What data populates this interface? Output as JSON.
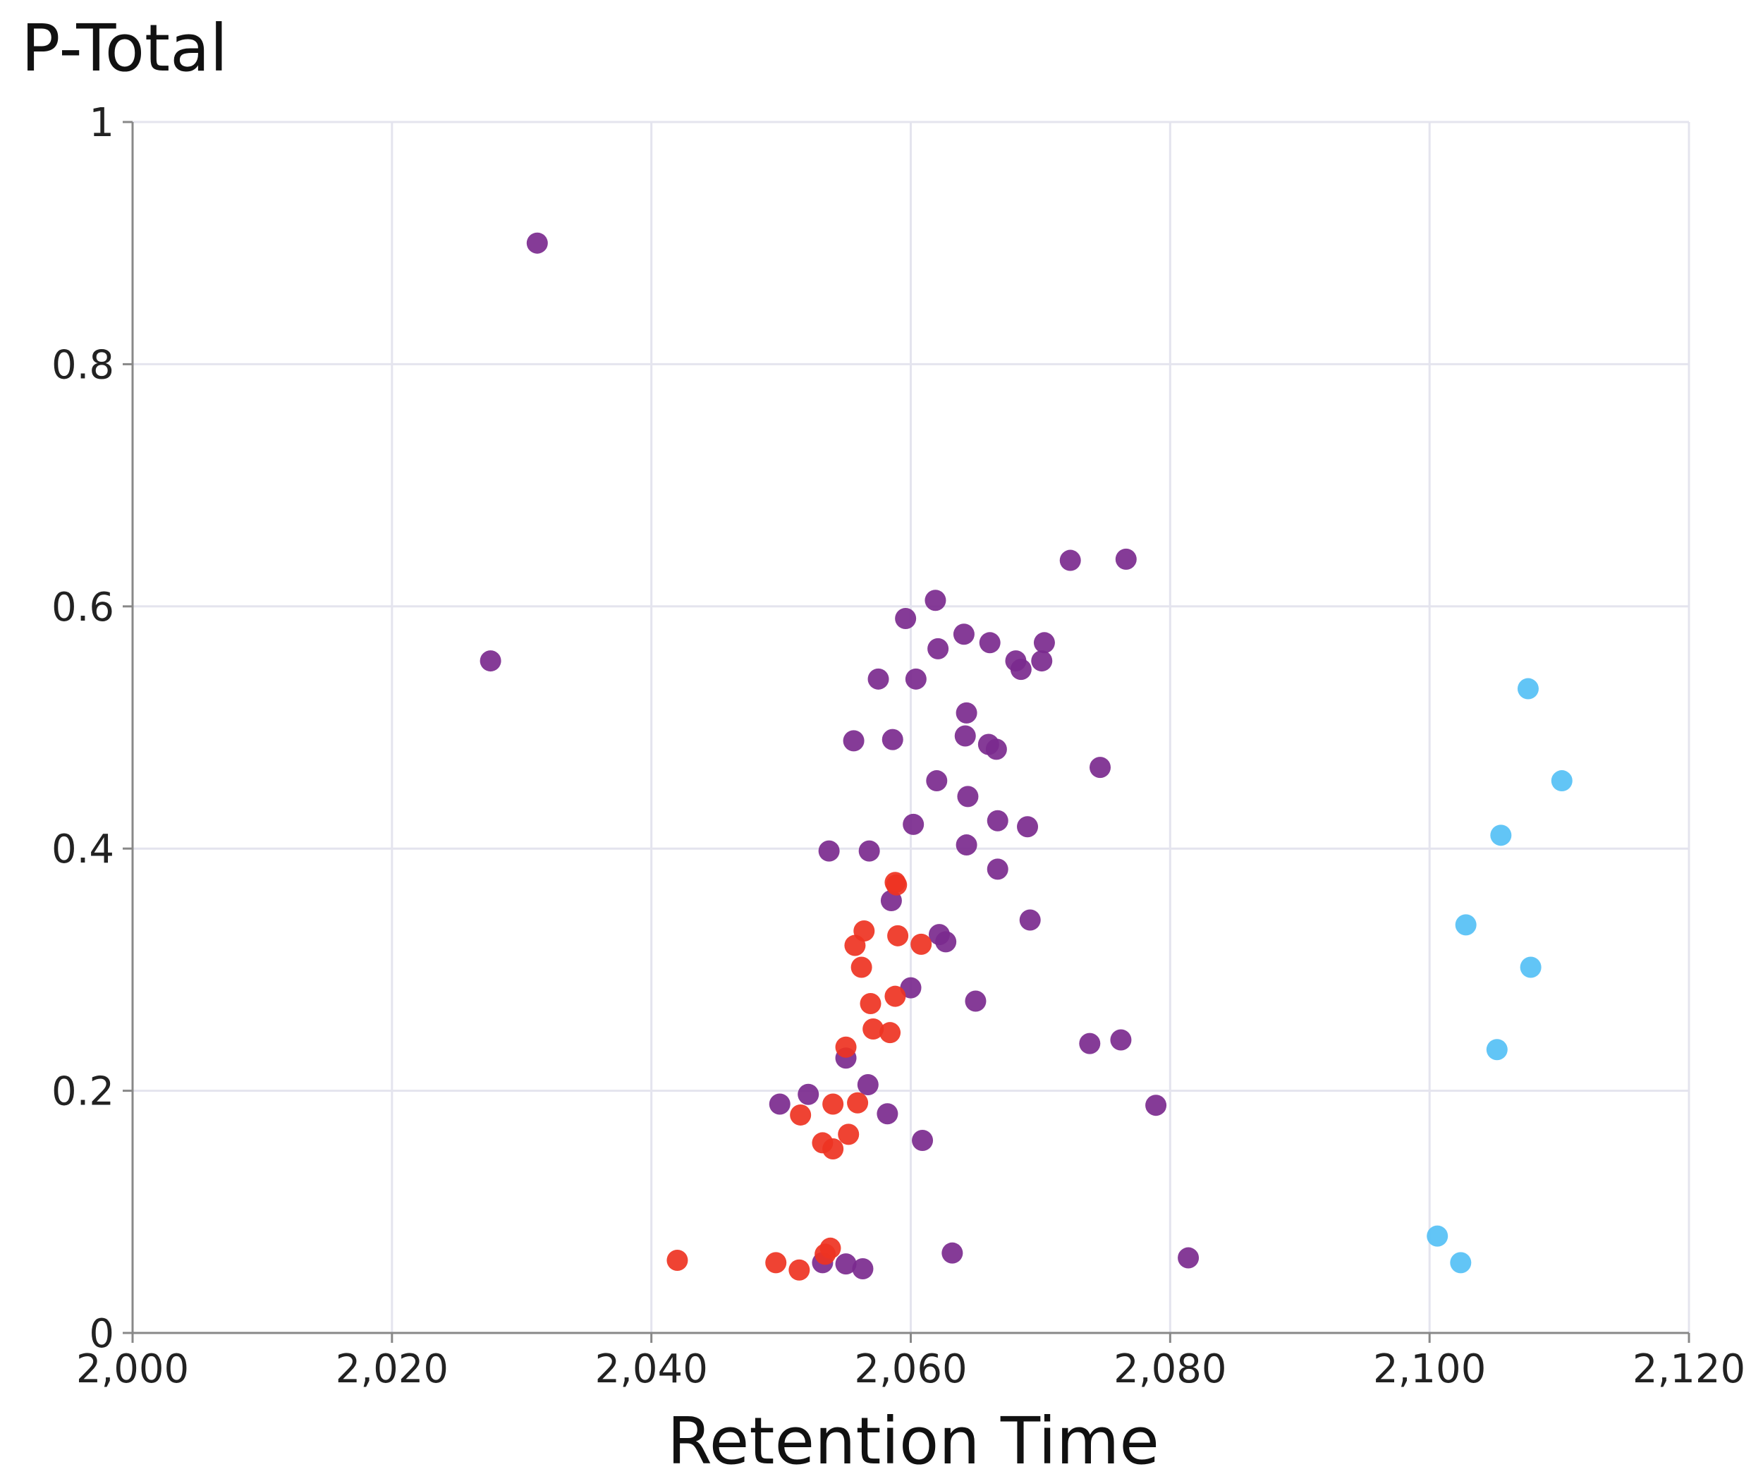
{
  "chart_data": {
    "type": "scatter",
    "title": "",
    "ylabel": "P-Total",
    "xlabel": "Retention Time",
    "xlim": [
      2000,
      2120
    ],
    "ylim": [
      0,
      1
    ],
    "x_ticks": [
      2000,
      2020,
      2040,
      2060,
      2080,
      2100,
      2120
    ],
    "x_tick_labels": [
      "2,000",
      "2,020",
      "2,040",
      "2,060",
      "2,080",
      "2,100",
      "2,120"
    ],
    "y_ticks": [
      0,
      0.2,
      0.4,
      0.6,
      0.8,
      1
    ],
    "y_tick_labels": [
      "0",
      "0.2",
      "0.4",
      "0.6",
      "0.8",
      "1"
    ],
    "grid": true,
    "legend": "none",
    "series": [
      {
        "color": "#7b2a8e",
        "points": [
          [
            2031.2,
            0.9
          ],
          [
            2027.6,
            0.555
          ],
          [
            2072.3,
            0.638
          ],
          [
            2076.6,
            0.639
          ],
          [
            2061.9,
            0.605
          ],
          [
            2059.6,
            0.59
          ],
          [
            2064.1,
            0.577
          ],
          [
            2066.1,
            0.57
          ],
          [
            2070.3,
            0.57
          ],
          [
            2062.1,
            0.565
          ],
          [
            2068.1,
            0.555
          ],
          [
            2070.1,
            0.555
          ],
          [
            2068.5,
            0.548
          ],
          [
            2057.5,
            0.54
          ],
          [
            2060.4,
            0.54
          ],
          [
            2064.3,
            0.512
          ],
          [
            2055.6,
            0.489
          ],
          [
            2058.6,
            0.49
          ],
          [
            2064.2,
            0.493
          ],
          [
            2066.0,
            0.486
          ],
          [
            2066.6,
            0.482
          ],
          [
            2074.6,
            0.467
          ],
          [
            2062.0,
            0.456
          ],
          [
            2064.4,
            0.443
          ],
          [
            2060.2,
            0.42
          ],
          [
            2066.7,
            0.423
          ],
          [
            2069.0,
            0.418
          ],
          [
            2053.7,
            0.398
          ],
          [
            2056.8,
            0.398
          ],
          [
            2064.3,
            0.403
          ],
          [
            2066.7,
            0.383
          ],
          [
            2058.5,
            0.357
          ],
          [
            2069.2,
            0.341
          ],
          [
            2062.2,
            0.329
          ],
          [
            2062.7,
            0.323
          ],
          [
            2060.0,
            0.285
          ],
          [
            2065.0,
            0.274
          ],
          [
            2073.8,
            0.239
          ],
          [
            2076.2,
            0.242
          ],
          [
            2055.0,
            0.227
          ],
          [
            2056.7,
            0.205
          ],
          [
            2052.1,
            0.197
          ],
          [
            2049.9,
            0.189
          ],
          [
            2078.9,
            0.188
          ],
          [
            2058.2,
            0.181
          ],
          [
            2060.9,
            0.159
          ],
          [
            2063.2,
            0.066
          ],
          [
            2081.4,
            0.062
          ],
          [
            2053.2,
            0.058
          ],
          [
            2055.0,
            0.057
          ],
          [
            2056.3,
            0.053
          ]
        ]
      },
      {
        "color": "#ee3322",
        "points": [
          [
            2058.8,
            0.372
          ],
          [
            2058.9,
            0.37
          ],
          [
            2056.4,
            0.332
          ],
          [
            2059.0,
            0.328
          ],
          [
            2055.7,
            0.32
          ],
          [
            2060.8,
            0.321
          ],
          [
            2056.2,
            0.302
          ],
          [
            2058.8,
            0.278
          ],
          [
            2056.9,
            0.272
          ],
          [
            2057.1,
            0.251
          ],
          [
            2058.4,
            0.248
          ],
          [
            2055.0,
            0.236
          ],
          [
            2054.0,
            0.189
          ],
          [
            2055.9,
            0.19
          ],
          [
            2051.5,
            0.18
          ],
          [
            2055.2,
            0.164
          ],
          [
            2053.2,
            0.157
          ],
          [
            2054.0,
            0.152
          ],
          [
            2053.8,
            0.07
          ],
          [
            2053.4,
            0.065
          ],
          [
            2042.0,
            0.06
          ],
          [
            2049.6,
            0.058
          ],
          [
            2051.4,
            0.052
          ]
        ]
      },
      {
        "color": "#55c0f5",
        "points": [
          [
            2107.6,
            0.532
          ],
          [
            2110.2,
            0.456
          ],
          [
            2105.5,
            0.411
          ],
          [
            2102.8,
            0.337
          ],
          [
            2107.8,
            0.302
          ],
          [
            2105.2,
            0.234
          ],
          [
            2100.6,
            0.08
          ],
          [
            2102.4,
            0.058
          ]
        ]
      }
    ]
  }
}
